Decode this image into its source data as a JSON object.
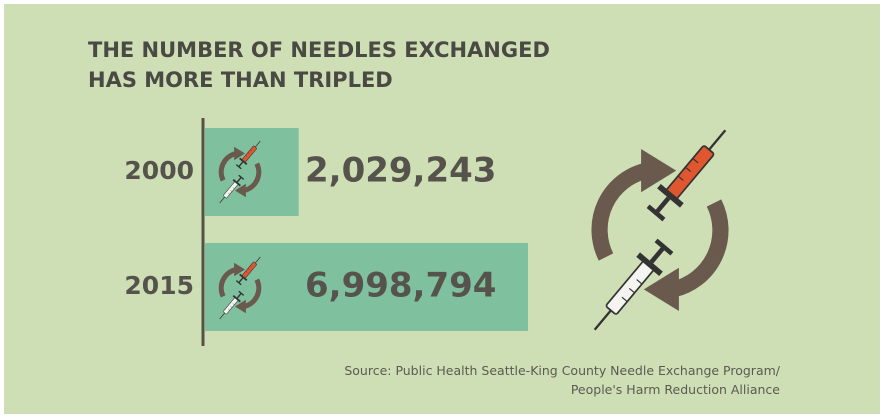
{
  "chart_data": {
    "type": "bar",
    "orientation": "horizontal",
    "title_lines": [
      "THE NUMBER OF NEEDLES EXCHANGED",
      "HAS MORE THAN TRIPLED"
    ],
    "categories": [
      "2000",
      "2015"
    ],
    "values": [
      2029243,
      6998794
    ],
    "value_labels": [
      "2,029,243",
      "6,998,794"
    ],
    "color": "#7fc09f",
    "source_lines": [
      "Source: Public Health Seattle-King County Needle Exchange Program/",
      "People's Harm Reduction Alliance"
    ]
  }
}
